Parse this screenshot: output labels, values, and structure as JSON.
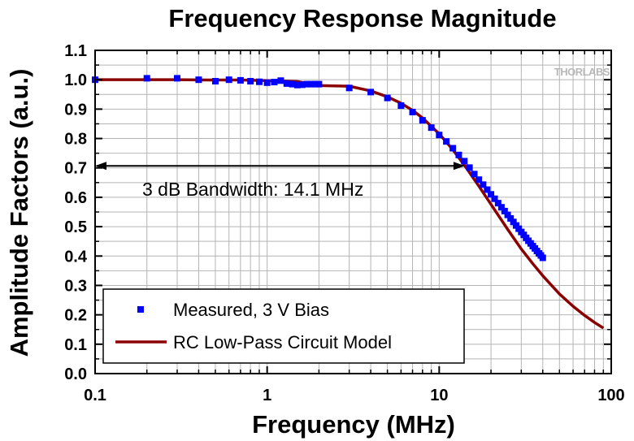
{
  "chart_data": {
    "type": "scatter",
    "title": "Frequency Response Magnitude",
    "xlabel": "Frequency (MHz)",
    "ylabel": "Amplitude Factors (a.u.)",
    "xscale": "log",
    "xlim": [
      0.1,
      100
    ],
    "ylim": [
      0,
      1.1
    ],
    "x_tick_labels": [
      "0.1",
      "1",
      "10",
      "100"
    ],
    "y_tick_labels": [
      "0.0",
      "0.1",
      "0.2",
      "0.3",
      "0.4",
      "0.5",
      "0.6",
      "0.7",
      "0.8",
      "0.9",
      "1.0",
      "1.1"
    ],
    "grid": true,
    "legend_position": "bottom-left",
    "watermark": "THORLABS",
    "annotation": {
      "text": "3 dB Bandwidth: 14.1 MHz",
      "y": 0.707,
      "x_from": 0.1,
      "x_to": 14.1
    },
    "series": [
      {
        "name": "Measured, 3 V Bias",
        "kind": "scatter",
        "color": "#0000ff",
        "x": [
          0.1,
          0.2,
          0.3,
          0.4,
          0.5,
          0.6,
          0.7,
          0.8,
          0.9,
          1.0,
          1.1,
          1.2,
          1.3,
          1.4,
          1.5,
          1.6,
          1.7,
          1.8,
          1.9,
          2.0,
          3.0,
          4.0,
          5.0,
          6.0,
          7.0,
          8.0,
          9.0,
          10.0,
          11.0,
          12.0,
          13.0,
          14.0,
          15.0,
          16.0,
          17.0,
          18.0,
          19.0,
          20.0,
          21.0,
          22.0,
          23.0,
          24.0,
          25.0,
          26.0,
          27.0,
          28.0,
          29.0,
          30.0,
          31.0,
          32.0,
          33.0,
          34.0,
          35.0,
          36.0,
          37.0,
          38.0,
          39.0,
          40.0
        ],
        "y": [
          1.0,
          1.005,
          1.005,
          1.0,
          0.995,
          1.0,
          0.998,
          0.995,
          0.993,
          0.99,
          0.992,
          0.997,
          0.987,
          0.985,
          0.982,
          0.983,
          0.985,
          0.985,
          0.985,
          0.985,
          0.972,
          0.958,
          0.938,
          0.912,
          0.89,
          0.862,
          0.837,
          0.812,
          0.79,
          0.767,
          0.744,
          0.723,
          0.701,
          0.679,
          0.66,
          0.643,
          0.626,
          0.61,
          0.595,
          0.58,
          0.566,
          0.553,
          0.54,
          0.528,
          0.516,
          0.504,
          0.493,
          0.482,
          0.472,
          0.462,
          0.452,
          0.443,
          0.434,
          0.426,
          0.417,
          0.409,
          0.402,
          0.394
        ]
      },
      {
        "name": "RC Low-Pass Circuit Model",
        "kind": "line",
        "color": "#8b0000",
        "x": [
          0.1,
          0.2,
          0.3,
          0.5,
          0.7,
          1.0,
          1.5,
          2.0,
          3.0,
          4.0,
          5.0,
          6.0,
          7.0,
          8.0,
          10.0,
          12.0,
          14.1,
          17.0,
          20.0,
          25.0,
          30.0,
          35.0,
          40.0,
          50.0,
          60.0,
          70.0,
          80.0,
          90.0
        ],
        "y": [
          1.0,
          1.0,
          1.0,
          0.999,
          0.999,
          0.997,
          0.994,
          0.98,
          0.978,
          0.962,
          0.942,
          0.92,
          0.896,
          0.87,
          0.816,
          0.762,
          0.707,
          0.638,
          0.576,
          0.491,
          0.424,
          0.374,
          0.333,
          0.271,
          0.229,
          0.198,
          0.174,
          0.155
        ]
      }
    ]
  }
}
